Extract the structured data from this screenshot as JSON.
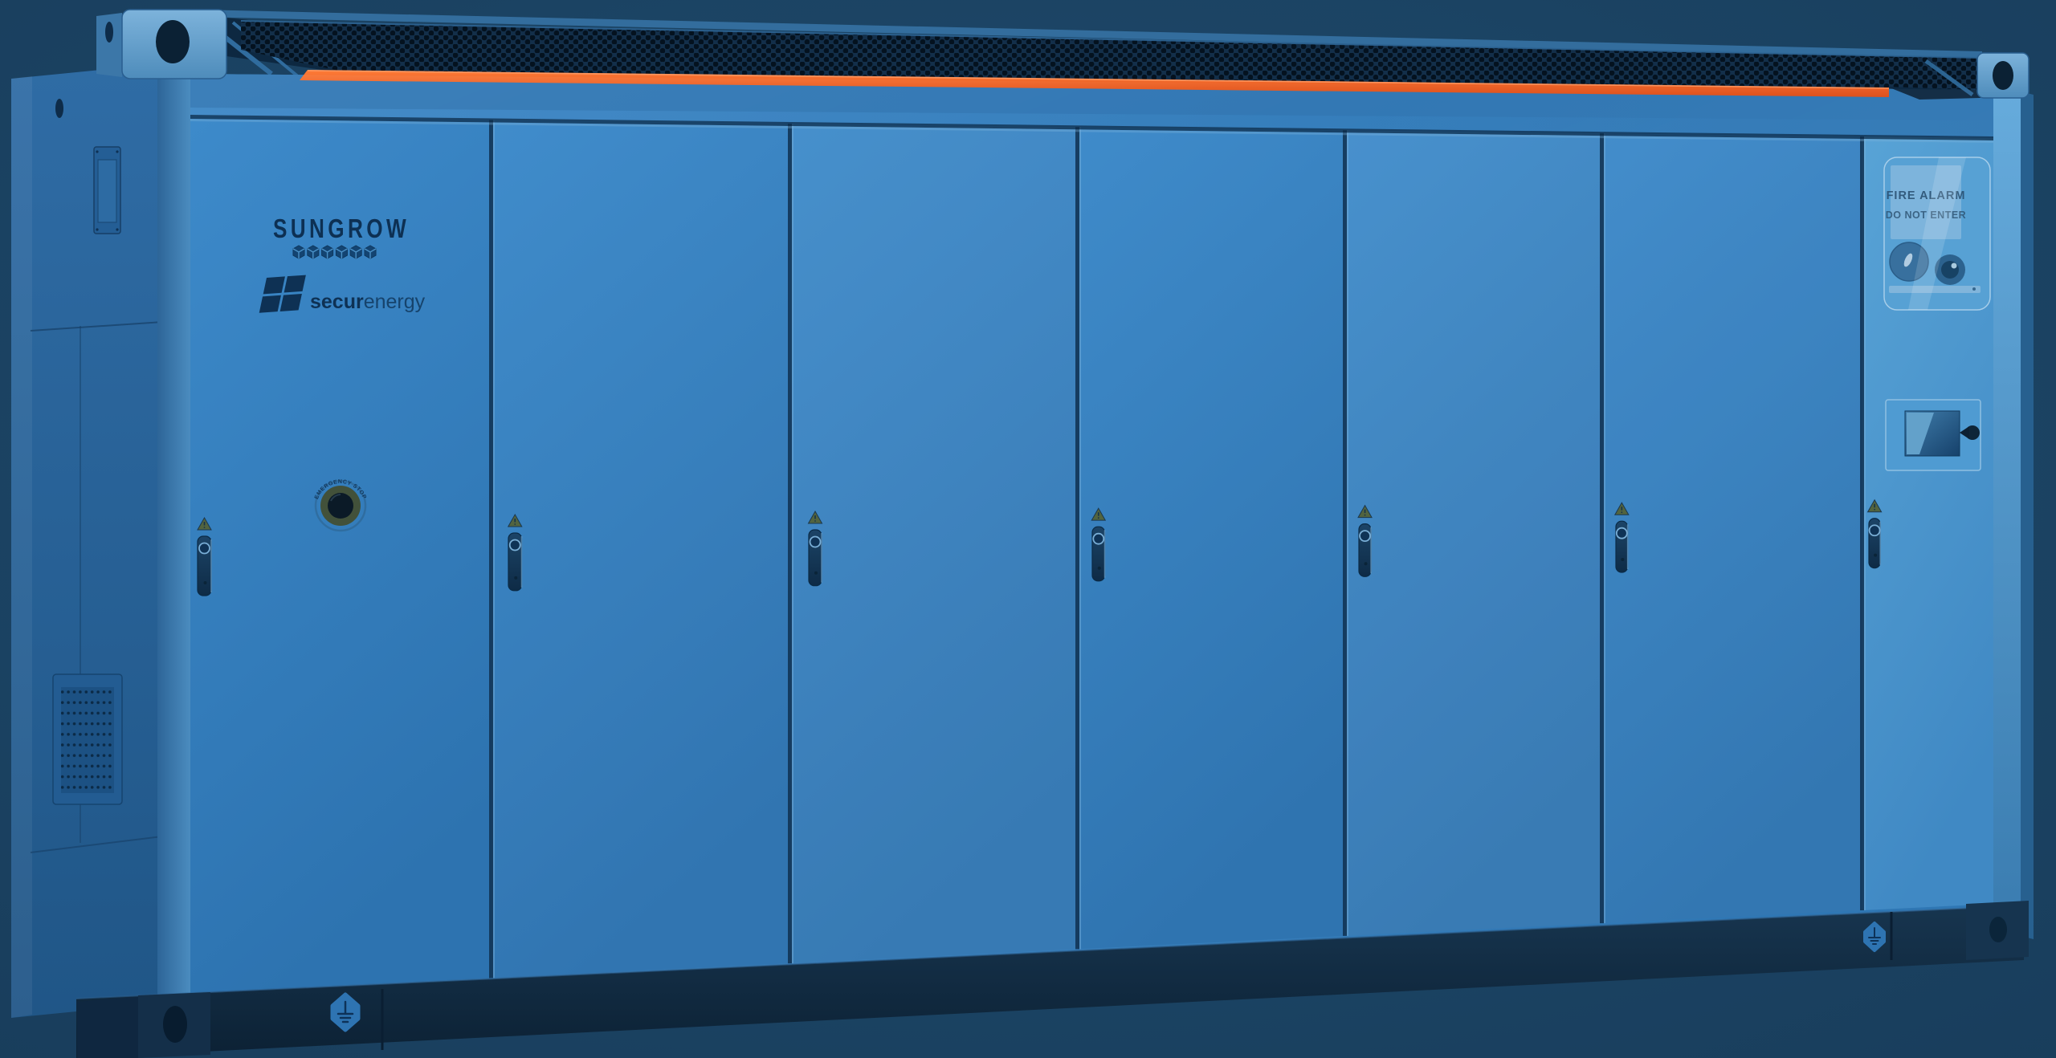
{
  "branding": {
    "sungrow": "SUNGROW",
    "secur": "secur",
    "energy": "energy"
  },
  "labels": {
    "fire_line1": "FIRE ALARM",
    "fire_line2": "DO NOT ENTER",
    "emergency_stop": "EMERGENCY STOP"
  },
  "counts": {
    "door_sections": 7,
    "door_handles": 7,
    "warning_stickers": 7,
    "grounding_badges": 2,
    "logo_cubes": 6
  },
  "colors": {
    "background": "#1c4565",
    "cabinet_blue": "#3382c2",
    "side_blue": "#27689f",
    "control_panel_blue": "#4f9bd2",
    "accent_orange": "#f15f2b",
    "vent_dark": "#0b2337",
    "logo_navy": "#0d3053",
    "base_rail": "#132f4a"
  }
}
